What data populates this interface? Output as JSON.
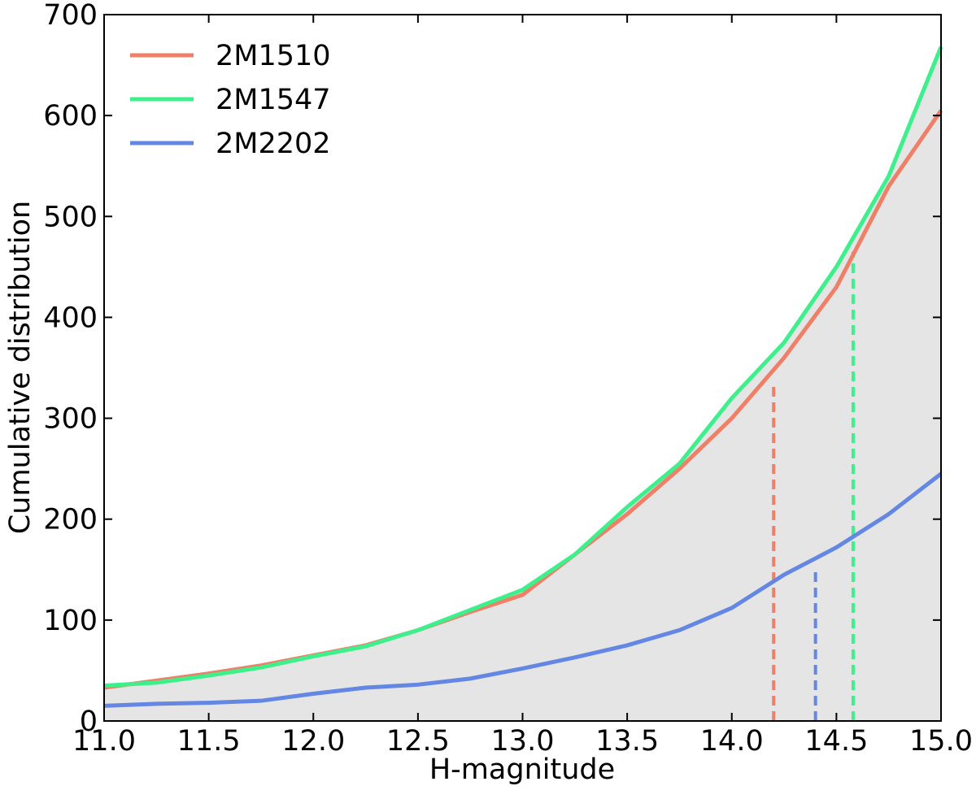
{
  "chart_data": {
    "type": "line",
    "x_label": "H-magnitude",
    "y_label": "Cumulative distribution",
    "x": [
      11.0,
      11.25,
      11.5,
      11.75,
      12.0,
      12.25,
      12.5,
      12.75,
      13.0,
      13.25,
      13.5,
      13.75,
      14.0,
      14.25,
      14.5,
      14.75,
      15.0
    ],
    "series": [
      {
        "name": "2M1510",
        "color": "#f07f68",
        "values": [
          33,
          40,
          47,
          55,
          65,
          75,
          90,
          108,
          125,
          165,
          205,
          250,
          300,
          360,
          430,
          530,
          605
        ]
      },
      {
        "name": "2M1547",
        "color": "#3df08c",
        "values": [
          35,
          38,
          45,
          53,
          64,
          74,
          90,
          110,
          130,
          165,
          212,
          255,
          320,
          375,
          450,
          540,
          668
        ]
      },
      {
        "name": "2M2202",
        "color": "#6487e3",
        "values": [
          15,
          17,
          18,
          20,
          27,
          33,
          36,
          42,
          52,
          63,
          75,
          90,
          112,
          145,
          172,
          205,
          245
        ]
      }
    ],
    "markers": [
      {
        "x": 14.2,
        "y": 336,
        "color": "#f07f68"
      },
      {
        "x": 14.4,
        "y": 153,
        "color": "#6487e3"
      },
      {
        "x": 14.58,
        "y": 465,
        "color": "#3df08c"
      }
    ],
    "fill_color": "#e5e5e5",
    "xlim": [
      11.0,
      15.0
    ],
    "xticks": [
      {
        "value": 11,
        "label": "11.0"
      },
      {
        "value": 11.5,
        "label": "11.5"
      },
      {
        "value": 12,
        "label": "12.0"
      },
      {
        "value": 12.5,
        "label": "12.5"
      },
      {
        "value": 13,
        "label": "13.0"
      },
      {
        "value": 13.5,
        "label": "13.5"
      },
      {
        "value": 14,
        "label": "14.0"
      },
      {
        "value": 14.5,
        "label": "14.5"
      },
      {
        "value": 15,
        "label": "15.0"
      }
    ],
    "ylim": [
      0,
      700
    ],
    "yticks": [
      0,
      100,
      200,
      300,
      400,
      500,
      600,
      700
    ],
    "legend": "upper left"
  }
}
